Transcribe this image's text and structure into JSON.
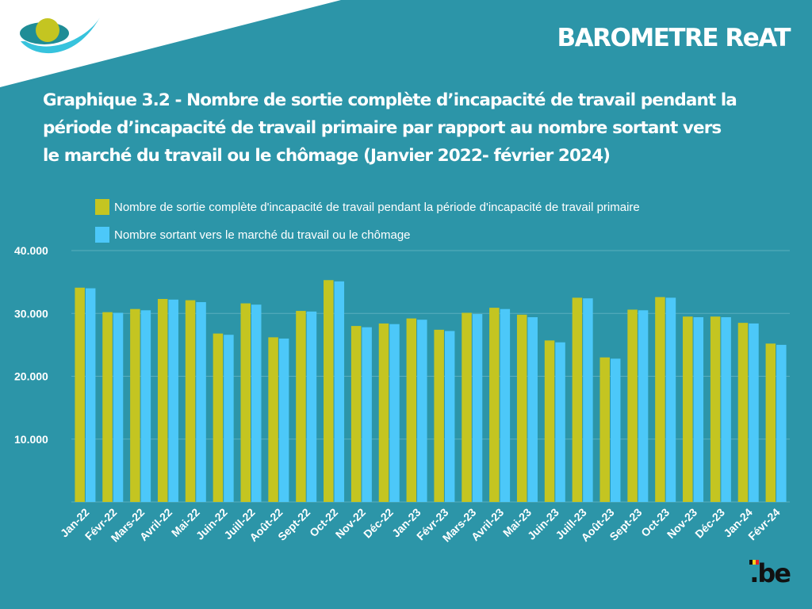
{
  "header": {
    "brand_title": "BAROMETRE ReAT",
    "chart_title_lines": [
      "Graphique 3.2 - Nombre de sortie complète d’incapacité de travail pendant la",
      "période d’incapacité de travail primaire par rapport au nombre sortant vers",
      "le marché du travail ou le chômage (Janvier 2022- février 2024)"
    ]
  },
  "footer": {
    "logo_text": ".be"
  },
  "colors": {
    "background": "#2c95a8",
    "series1": "#c4c521",
    "series2": "#4cc8f9"
  },
  "chart_data": {
    "type": "bar",
    "title": "Graphique 3.2 - Nombre de sortie complète d’incapacité de travail pendant la période d’incapacité de travail primaire par rapport au nombre sortant vers le marché du travail ou le chômage (Janvier 2022- février 2024)",
    "xlabel": "",
    "ylabel": "",
    "ylim": [
      0,
      40000
    ],
    "yticks": [
      10000,
      20000,
      30000,
      40000
    ],
    "ytick_labels": [
      "10.000",
      "20.000",
      "30.000",
      "40.000"
    ],
    "grid": true,
    "legend_position": "top-left",
    "categories": [
      "Jan-22",
      "Févr-22",
      "Mars-22",
      "Avril-22",
      "Mai-22",
      "Juin-22",
      "Juill-22",
      "Août-22",
      "Sept-22",
      "Oct-22",
      "Nov-22",
      "Déc-22",
      "Jan-23",
      "Févr-23",
      "Mars-23",
      "Avril-23",
      "Mai-23",
      "Juin-23",
      "Juill-23",
      "Août-23",
      "Sept-23",
      "Oct-23",
      "Nov-23",
      "Déc-23",
      "Jan-24",
      "Févr-24"
    ],
    "series": [
      {
        "name": "Nombre de sortie complète d'incapacité de travail pendant la période d'incapacité de travail primaire",
        "values": [
          34100,
          30200,
          30700,
          32300,
          32100,
          26800,
          31600,
          26200,
          30400,
          35300,
          28000,
          28400,
          29200,
          27400,
          30100,
          30900,
          29800,
          25700,
          32500,
          23000,
          30600,
          32600,
          29500,
          29500,
          28500,
          25200
        ]
      },
      {
        "name": "Nombre sortant vers le marché du travail ou le chômage",
        "values": [
          34000,
          30100,
          30500,
          32200,
          31800,
          26600,
          31400,
          26000,
          30300,
          35100,
          27800,
          28300,
          29000,
          27200,
          29900,
          30700,
          29400,
          25400,
          32400,
          22800,
          30500,
          32500,
          29400,
          29400,
          28400,
          25000
        ]
      }
    ]
  }
}
